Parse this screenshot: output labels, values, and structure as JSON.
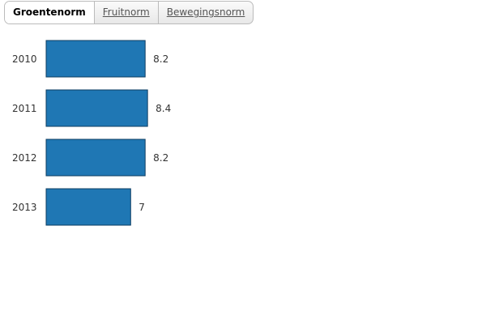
{
  "tabs": [
    "Groentenorm",
    "Fruitnorm",
    "Bewegingsnorm"
  ],
  "active_tab": 0,
  "chart_data": {
    "type": "bar",
    "orientation": "horizontal",
    "categories": [
      "2010",
      "2011",
      "2012",
      "2013"
    ],
    "values": [
      8.2,
      8.4,
      8.2,
      7
    ],
    "color": "#1f77b4"
  }
}
